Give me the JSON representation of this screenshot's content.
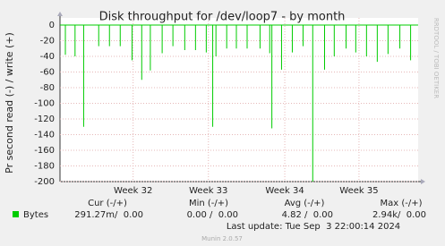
{
  "chart_data": {
    "type": "spike",
    "title": "Disk throughput for /dev/loop7 - by month",
    "y_label": "Pr second read (-) / write (+)",
    "watermark": "RRDTOOL / TOBI OETIKER",
    "xlim": [
      0,
      33.3
    ],
    "xticks": [
      {
        "value": 6.8,
        "label": "Week 32"
      },
      {
        "value": 13.8,
        "label": "Week 33"
      },
      {
        "value": 20.9,
        "label": "Week 34"
      },
      {
        "value": 27.8,
        "label": "Week 35"
      }
    ],
    "ylim": [
      -200,
      0
    ],
    "yticks": [
      0,
      -20,
      -40,
      -60,
      -80,
      -100,
      -120,
      -140,
      -160,
      -180,
      -200
    ],
    "grid": true,
    "series": [
      {
        "name": "Bytes",
        "color": "#00cc00",
        "x": [
          0.5,
          1.4,
          2.2,
          3.6,
          4.6,
          5.6,
          6.7,
          7.6,
          8.4,
          9.5,
          10.5,
          11.6,
          12.6,
          13.6,
          14.2,
          14.5,
          15.5,
          16.4,
          17.4,
          18.6,
          19.5,
          19.7,
          20.6,
          21.6,
          22.6,
          23.5,
          24.6,
          25.5,
          26.6,
          27.5,
          28.5,
          29.5,
          30.5,
          31.6,
          32.6
        ],
        "values": [
          -38,
          -40,
          -130,
          -27,
          -27,
          -27,
          -45,
          -70,
          -58,
          -36,
          -27,
          -32,
          -32,
          -35,
          -130,
          -40,
          -30,
          -30,
          -30,
          -30,
          -36,
          -132,
          -57,
          -35,
          -27,
          -200,
          -57,
          -40,
          -30,
          -35,
          -40,
          -47,
          -37,
          -30,
          -45
        ]
      }
    ],
    "summary": {
      "headers": [
        "Cur (-/+)",
        "Min (-/+)",
        "Avg (-/+)",
        "Max (-/+)"
      ],
      "rows": [
        [
          "291.27m/  0.00",
          "0.00 /  0.00",
          "4.82 /  0.00",
          "2.94k/  0.00"
        ]
      ]
    },
    "last_update": "Last update: Tue Sep  3 22:00:14 2024",
    "footer": "Munin 2.0.57"
  }
}
